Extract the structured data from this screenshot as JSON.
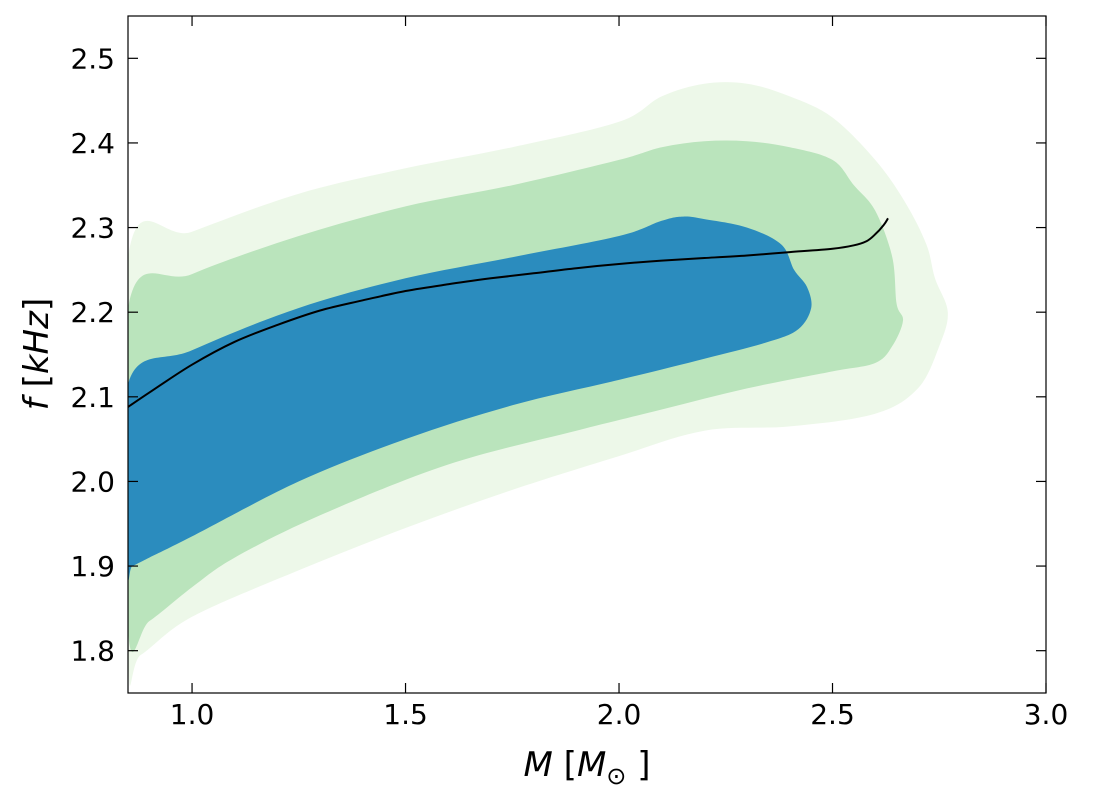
{
  "chart_data": {
    "type": "area",
    "title": "",
    "xlabel": "M [M_⊙]",
    "ylabel": "f [kHz]",
    "xlim": [
      0.85,
      3.0
    ],
    "ylim": [
      1.75,
      2.55
    ],
    "grid": false,
    "legend": "none",
    "x_ticks": [
      1.0,
      1.5,
      2.0,
      2.5,
      3.0
    ],
    "x_tick_labels": [
      "1.0",
      "1.5",
      "2.0",
      "2.5",
      "3.0"
    ],
    "y_ticks": [
      1.8,
      1.9,
      2.0,
      2.1,
      2.2,
      2.3,
      2.4,
      2.5
    ],
    "y_tick_labels": [
      "1.8",
      "1.9",
      "2.0",
      "2.1",
      "2.2",
      "2.3",
      "2.4",
      "2.5"
    ],
    "regions": [
      {
        "level": "outer",
        "color": "#edf8e9",
        "boundary": [
          [
            0.85,
            2.265
          ],
          [
            1.0,
            2.295
          ],
          [
            1.25,
            2.34
          ],
          [
            1.5,
            2.37
          ],
          [
            1.75,
            2.395
          ],
          [
            2.0,
            2.425
          ],
          [
            2.1,
            2.455
          ],
          [
            2.2,
            2.47
          ],
          [
            2.3,
            2.47
          ],
          [
            2.4,
            2.455
          ],
          [
            2.5,
            2.43
          ],
          [
            2.6,
            2.38
          ],
          [
            2.67,
            2.33
          ],
          [
            2.72,
            2.28
          ],
          [
            2.74,
            2.24
          ],
          [
            2.77,
            2.2
          ],
          [
            2.75,
            2.16
          ],
          [
            2.7,
            2.11
          ],
          [
            2.6,
            2.08
          ],
          [
            2.4,
            2.065
          ],
          [
            2.2,
            2.06
          ],
          [
            2.0,
            2.03
          ],
          [
            1.75,
            1.99
          ],
          [
            1.5,
            1.945
          ],
          [
            1.25,
            1.895
          ],
          [
            1.0,
            1.84
          ],
          [
            0.88,
            1.795
          ],
          [
            0.85,
            1.795
          ]
        ]
      },
      {
        "level": "middle",
        "color": "#bae4bc",
        "boundary": [
          [
            0.85,
            2.205
          ],
          [
            1.0,
            2.245
          ],
          [
            1.25,
            2.29
          ],
          [
            1.5,
            2.325
          ],
          [
            1.75,
            2.35
          ],
          [
            2.0,
            2.38
          ],
          [
            2.1,
            2.395
          ],
          [
            2.2,
            2.402
          ],
          [
            2.3,
            2.402
          ],
          [
            2.4,
            2.395
          ],
          [
            2.5,
            2.38
          ],
          [
            2.55,
            2.35
          ],
          [
            2.6,
            2.32
          ],
          [
            2.64,
            2.265
          ],
          [
            2.65,
            2.21
          ],
          [
            2.665,
            2.19
          ],
          [
            2.64,
            2.16
          ],
          [
            2.6,
            2.14
          ],
          [
            2.5,
            2.13
          ],
          [
            2.3,
            2.11
          ],
          [
            2.1,
            2.085
          ],
          [
            1.9,
            2.06
          ],
          [
            1.6,
            2.02
          ],
          [
            1.3,
            1.96
          ],
          [
            1.1,
            1.91
          ],
          [
            1.0,
            1.875
          ],
          [
            0.9,
            1.835
          ],
          [
            0.85,
            1.825
          ]
        ]
      },
      {
        "level": "inner",
        "color": "#2b8cbe",
        "boundary": [
          [
            0.85,
            2.115
          ],
          [
            1.0,
            2.155
          ],
          [
            1.25,
            2.205
          ],
          [
            1.5,
            2.24
          ],
          [
            1.75,
            2.265
          ],
          [
            2.0,
            2.29
          ],
          [
            2.1,
            2.308
          ],
          [
            2.15,
            2.313
          ],
          [
            2.2,
            2.31
          ],
          [
            2.3,
            2.3
          ],
          [
            2.38,
            2.28
          ],
          [
            2.41,
            2.25
          ],
          [
            2.44,
            2.23
          ],
          [
            2.45,
            2.205
          ],
          [
            2.42,
            2.18
          ],
          [
            2.35,
            2.165
          ],
          [
            2.2,
            2.145
          ],
          [
            2.0,
            2.12
          ],
          [
            1.75,
            2.09
          ],
          [
            1.5,
            2.05
          ],
          [
            1.25,
            2.0
          ],
          [
            1.0,
            1.935
          ],
          [
            0.9,
            1.91
          ],
          [
            0.86,
            1.9
          ],
          [
            0.85,
            1.9
          ]
        ]
      }
    ],
    "curve": {
      "color": "#000000",
      "points": [
        [
          0.85,
          2.088
        ],
        [
          0.9,
          2.105
        ],
        [
          1.0,
          2.138
        ],
        [
          1.1,
          2.165
        ],
        [
          1.2,
          2.185
        ],
        [
          1.3,
          2.202
        ],
        [
          1.4,
          2.214
        ],
        [
          1.5,
          2.225
        ],
        [
          1.6,
          2.233
        ],
        [
          1.7,
          2.24
        ],
        [
          1.8,
          2.246
        ],
        [
          1.9,
          2.252
        ],
        [
          2.0,
          2.257
        ],
        [
          2.1,
          2.261
        ],
        [
          2.2,
          2.264
        ],
        [
          2.3,
          2.267
        ],
        [
          2.4,
          2.271
        ],
        [
          2.5,
          2.275
        ],
        [
          2.55,
          2.279
        ],
        [
          2.58,
          2.284
        ],
        [
          2.6,
          2.292
        ],
        [
          2.62,
          2.303
        ],
        [
          2.63,
          2.311
        ]
      ]
    }
  }
}
